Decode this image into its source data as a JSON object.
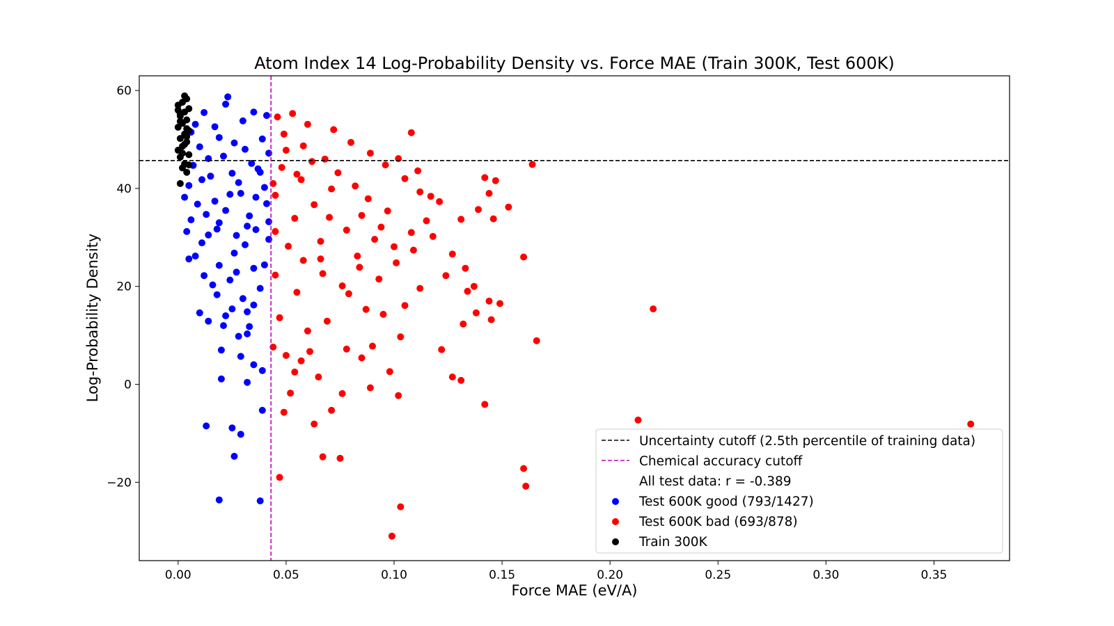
{
  "chart_data": {
    "type": "scatter",
    "title": "Atom Index 14 Log-Probability Density vs. Force MAE (Train 300K, Test 600K)",
    "xlabel": "Force MAE (eV/A)",
    "ylabel": "Log-Probability Density",
    "xlim": [
      -0.018,
      0.385
    ],
    "ylim": [
      -36,
      63
    ],
    "x_ticks": [
      0.0,
      0.05,
      0.1,
      0.15,
      0.2,
      0.25,
      0.3,
      0.35
    ],
    "x_tick_labels": [
      "0.00",
      "0.05",
      "0.10",
      "0.15",
      "0.20",
      "0.25",
      "0.30",
      "0.35"
    ],
    "y_ticks": [
      60,
      40,
      20,
      0,
      -20
    ],
    "y_tick_labels": [
      "60",
      "40",
      "20",
      "0",
      "−20"
    ],
    "grid": false,
    "legend_position": "lower-right",
    "reference_lines": [
      {
        "orientation": "horizontal",
        "value": 45.7,
        "style": "dashed",
        "color": "#000000",
        "label": "Uncertainty cutoff (2.5th percentile of training data)"
      },
      {
        "orientation": "vertical",
        "value": 0.043,
        "style": "dashed",
        "color": "#bf00bf",
        "label": "Chemical accuracy cutoff"
      }
    ],
    "legend_note": "All test data: r = -0.389",
    "series": [
      {
        "name": "Test 600K good (793/1427)",
        "color": "#0000ff",
        "points": [
          [
            0.019,
            -23.6
          ],
          [
            0.038,
            -23.8
          ],
          [
            0.026,
            -14.7
          ],
          [
            0.013,
            -8.5
          ],
          [
            0.025,
            -8.9
          ],
          [
            0.029,
            -10.2
          ],
          [
            0.039,
            -5.3
          ],
          [
            0.02,
            1.1
          ],
          [
            0.032,
            0.4
          ],
          [
            0.039,
            2.8
          ],
          [
            0.035,
            4.0
          ],
          [
            0.029,
            5.7
          ],
          [
            0.02,
            7.0
          ],
          [
            0.028,
            9.8
          ],
          [
            0.032,
            10.3
          ],
          [
            0.033,
            11.8
          ],
          [
            0.021,
            12.0
          ],
          [
            0.014,
            12.9
          ],
          [
            0.01,
            14.6
          ],
          [
            0.025,
            15.4
          ],
          [
            0.032,
            14.8
          ],
          [
            0.022,
            14.0
          ],
          [
            0.035,
            16.2
          ],
          [
            0.03,
            17.5
          ],
          [
            0.018,
            18.3
          ],
          [
            0.016,
            20.3
          ],
          [
            0.024,
            21.3
          ],
          [
            0.038,
            19.6
          ],
          [
            0.012,
            22.2
          ],
          [
            0.027,
            22.9
          ],
          [
            0.019,
            24.3
          ],
          [
            0.008,
            26.2
          ],
          [
            0.035,
            23.7
          ],
          [
            0.005,
            25.6
          ],
          [
            0.011,
            28.9
          ],
          [
            0.026,
            26.8
          ],
          [
            0.04,
            24.4
          ],
          [
            0.004,
            31.2
          ],
          [
            0.014,
            30.5
          ],
          [
            0.031,
            28.5
          ],
          [
            0.006,
            33.6
          ],
          [
            0.019,
            33.0
          ],
          [
            0.036,
            31.6
          ],
          [
            0.009,
            36.8
          ],
          [
            0.042,
            29.6
          ],
          [
            0.003,
            38.2
          ],
          [
            0.024,
            38.8
          ],
          [
            0.033,
            34.4
          ],
          [
            0.041,
            36.9
          ],
          [
            0.005,
            40.6
          ],
          [
            0.015,
            42.5
          ],
          [
            0.028,
            41.2
          ],
          [
            0.038,
            43.3
          ],
          [
            0.007,
            44.7
          ],
          [
            0.021,
            46.6
          ],
          [
            0.034,
            45.1
          ],
          [
            0.042,
            47.2
          ],
          [
            0.01,
            48.5
          ],
          [
            0.026,
            49.3
          ],
          [
            0.039,
            50.1
          ],
          [
            0.006,
            51.5
          ],
          [
            0.017,
            52.6
          ],
          [
            0.03,
            53.8
          ],
          [
            0.041,
            54.9
          ],
          [
            0.012,
            55.5
          ],
          [
            0.022,
            57.2
          ],
          [
            0.023,
            58.7
          ],
          [
            0.035,
            55.6
          ],
          [
            0.008,
            53.1
          ],
          [
            0.019,
            50.4
          ],
          [
            0.031,
            48.0
          ],
          [
            0.014,
            46.1
          ],
          [
            0.037,
            44.0
          ],
          [
            0.025,
            43.1
          ],
          [
            0.011,
            41.8
          ],
          [
            0.04,
            40.2
          ],
          [
            0.029,
            39.0
          ],
          [
            0.017,
            37.4
          ],
          [
            0.036,
            38.2
          ],
          [
            0.022,
            35.5
          ],
          [
            0.042,
            33.2
          ],
          [
            0.013,
            34.7
          ],
          [
            0.032,
            32.3
          ],
          [
            0.027,
            30.4
          ],
          [
            0.018,
            31.7
          ]
        ]
      },
      {
        "name": "Test 600K bad (693/878)",
        "color": "#ff0000",
        "points": [
          [
            0.367,
            -8.1
          ],
          [
            0.213,
            -7.3
          ],
          [
            0.22,
            15.4
          ],
          [
            0.166,
            8.9
          ],
          [
            0.164,
            44.9
          ],
          [
            0.16,
            26.0
          ],
          [
            0.16,
            -17.2
          ],
          [
            0.161,
            -20.8
          ],
          [
            0.099,
            -31.0
          ],
          [
            0.103,
            -25.0
          ],
          [
            0.047,
            -19.0
          ],
          [
            0.075,
            -15.1
          ],
          [
            0.067,
            -14.8
          ],
          [
            0.142,
            -4.1
          ],
          [
            0.102,
            -2.3
          ],
          [
            0.089,
            -0.7
          ],
          [
            0.131,
            0.8
          ],
          [
            0.127,
            1.5
          ],
          [
            0.098,
            2.6
          ],
          [
            0.122,
            7.1
          ],
          [
            0.132,
            12.3
          ],
          [
            0.145,
            13.2
          ],
          [
            0.149,
            16.5
          ],
          [
            0.138,
            14.6
          ],
          [
            0.144,
            17.0
          ],
          [
            0.142,
            42.2
          ],
          [
            0.147,
            41.6
          ],
          [
            0.144,
            39.0
          ],
          [
            0.153,
            36.2
          ],
          [
            0.139,
            35.7
          ],
          [
            0.146,
            33.8
          ],
          [
            0.131,
            33.7
          ],
          [
            0.118,
            30.2
          ],
          [
            0.121,
            37.3
          ],
          [
            0.117,
            38.4
          ],
          [
            0.108,
            51.4
          ],
          [
            0.111,
            43.6
          ],
          [
            0.102,
            46.1
          ],
          [
            0.063,
            -8.1
          ],
          [
            0.049,
            -5.7
          ],
          [
            0.052,
            -1.8
          ],
          [
            0.071,
            -5.3
          ],
          [
            0.076,
            -1.9
          ],
          [
            0.065,
            1.5
          ],
          [
            0.054,
            2.5
          ],
          [
            0.061,
            6.7
          ],
          [
            0.057,
            4.8
          ],
          [
            0.05,
            5.9
          ],
          [
            0.044,
            7.6
          ],
          [
            0.078,
            7.2
          ],
          [
            0.085,
            5.4
          ],
          [
            0.09,
            7.8
          ],
          [
            0.103,
            9.7
          ],
          [
            0.134,
            19.0
          ],
          [
            0.127,
            26.6
          ],
          [
            0.124,
            22.2
          ],
          [
            0.133,
            23.7
          ],
          [
            0.137,
            20.0
          ],
          [
            0.112,
            19.6
          ],
          [
            0.105,
            16.1
          ],
          [
            0.095,
            14.3
          ],
          [
            0.087,
            15.3
          ],
          [
            0.079,
            18.5
          ],
          [
            0.069,
            12.9
          ],
          [
            0.06,
            10.9
          ],
          [
            0.047,
            13.6
          ],
          [
            0.055,
            18.8
          ],
          [
            0.045,
            22.3
          ],
          [
            0.066,
            25.6
          ],
          [
            0.083,
            26.2
          ],
          [
            0.091,
            29.6
          ],
          [
            0.1,
            28.1
          ],
          [
            0.108,
            31.0
          ],
          [
            0.115,
            33.4
          ],
          [
            0.097,
            35.4
          ],
          [
            0.088,
            37.9
          ],
          [
            0.082,
            40.5
          ],
          [
            0.074,
            43.2
          ],
          [
            0.068,
            46.0
          ],
          [
            0.058,
            48.7
          ],
          [
            0.049,
            51.1
          ],
          [
            0.046,
            54.6
          ],
          [
            0.053,
            55.3
          ],
          [
            0.06,
            53.1
          ],
          [
            0.072,
            52.0
          ],
          [
            0.08,
            49.4
          ],
          [
            0.089,
            47.2
          ],
          [
            0.096,
            44.8
          ],
          [
            0.105,
            42.0
          ],
          [
            0.112,
            39.3
          ],
          [
            0.071,
            39.9
          ],
          [
            0.063,
            36.7
          ],
          [
            0.054,
            33.9
          ],
          [
            0.045,
            31.2
          ],
          [
            0.051,
            28.2
          ],
          [
            0.058,
            25.3
          ],
          [
            0.067,
            22.6
          ],
          [
            0.076,
            20.1
          ],
          [
            0.084,
            23.9
          ],
          [
            0.093,
            21.5
          ],
          [
            0.101,
            24.8
          ],
          [
            0.109,
            27.4
          ],
          [
            0.078,
            31.5
          ],
          [
            0.066,
            29.2
          ],
          [
            0.057,
            41.8
          ],
          [
            0.048,
            44.3
          ],
          [
            0.062,
            45.5
          ],
          [
            0.085,
            34.5
          ],
          [
            0.094,
            32.1
          ],
          [
            0.07,
            34.1
          ],
          [
            0.045,
            38.6
          ],
          [
            0.05,
            47.8
          ],
          [
            0.055,
            42.9
          ],
          [
            0.044,
            41.0
          ]
        ]
      },
      {
        "name": "Train 300K",
        "color": "#000000",
        "points": [
          [
            0.001,
            41.0
          ],
          [
            0.004,
            43.3
          ],
          [
            0.002,
            44.2
          ],
          [
            0.003,
            45.0
          ],
          [
            0.001,
            46.4
          ],
          [
            0.005,
            46.9
          ],
          [
            0.0,
            47.8
          ],
          [
            0.002,
            48.6
          ],
          [
            0.004,
            49.5
          ],
          [
            0.001,
            50.2
          ],
          [
            0.003,
            51.1
          ],
          [
            0.005,
            51.8
          ],
          [
            0.0,
            52.5
          ],
          [
            0.002,
            53.3
          ],
          [
            0.004,
            54.0
          ],
          [
            0.001,
            54.8
          ],
          [
            0.003,
            55.6
          ],
          [
            0.005,
            56.3
          ],
          [
            0.0,
            57.0
          ],
          [
            0.002,
            57.6
          ],
          [
            0.004,
            58.3
          ],
          [
            0.003,
            58.9
          ],
          [
            0.001,
            53.7
          ],
          [
            0.004,
            50.6
          ],
          [
            0.002,
            47.2
          ],
          [
            0.005,
            44.8
          ],
          [
            0.0,
            56.0
          ],
          [
            0.003,
            49.0
          ],
          [
            0.001,
            55.2
          ],
          [
            0.004,
            52.2
          ]
        ]
      }
    ]
  }
}
